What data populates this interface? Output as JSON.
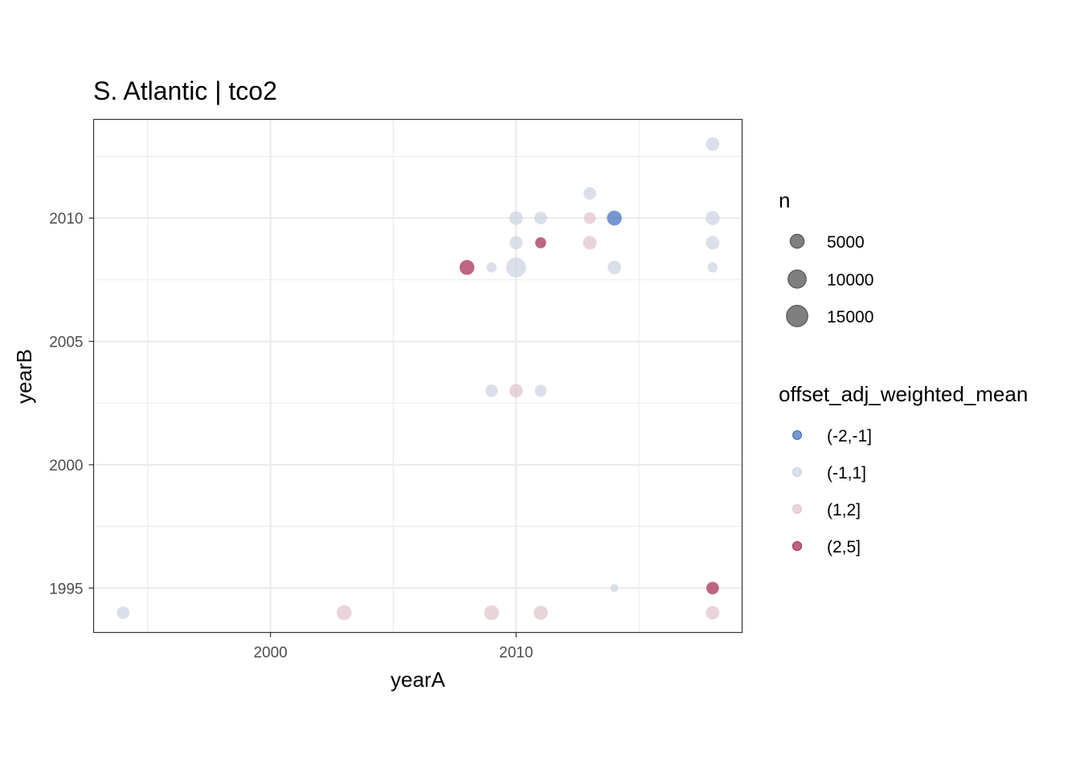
{
  "chart_data": {
    "type": "scatter",
    "title": "S. Atlantic | tco2",
    "xlabel": "yearA",
    "ylabel": "yearB",
    "xlim": [
      1992.8,
      2019.2
    ],
    "ylim": [
      1993.2,
      2014.0
    ],
    "x_ticks": [
      2000,
      2010
    ],
    "y_ticks": [
      1995,
      2000,
      2005,
      2010
    ],
    "grid": true,
    "size_legend": {
      "title": "n",
      "entries": [
        {
          "label": "5000",
          "value": 5000
        },
        {
          "label": "10000",
          "value": 10000
        },
        {
          "label": "15000",
          "value": 15000
        }
      ]
    },
    "color_legend": {
      "title": "offset_adj_weighted_mean",
      "bins": [
        {
          "label": "(-2,-1]",
          "color": "#3b6bbf"
        },
        {
          "label": "(-1,1]",
          "color": "#ccd1e0"
        },
        {
          "label": "(1,2]",
          "color": "#dfc2cb"
        },
        {
          "label": "(2,5]",
          "color": "#a3244f"
        }
      ]
    },
    "points": [
      {
        "x": 2018,
        "y": 2013,
        "n": 4500,
        "bin": "(-1,1]"
      },
      {
        "x": 2013,
        "y": 2011,
        "n": 3600,
        "bin": "(-1,1]"
      },
      {
        "x": 2010,
        "y": 2010,
        "n": 4500,
        "bin": "(-1,1]"
      },
      {
        "x": 2011,
        "y": 2010,
        "n": 3600,
        "bin": "(-1,1]"
      },
      {
        "x": 2013,
        "y": 2010,
        "n": 3000,
        "bin": "(1,2]"
      },
      {
        "x": 2014,
        "y": 2010,
        "n": 5800,
        "bin": "(-2,-1]"
      },
      {
        "x": 2018,
        "y": 2010,
        "n": 5000,
        "bin": "(-1,1]"
      },
      {
        "x": 2010,
        "y": 2009,
        "n": 4000,
        "bin": "(-1,1]"
      },
      {
        "x": 2011,
        "y": 2009,
        "n": 2400,
        "bin": "(2,5]"
      },
      {
        "x": 2013,
        "y": 2009,
        "n": 4500,
        "bin": "(1,2]"
      },
      {
        "x": 2018,
        "y": 2009,
        "n": 4500,
        "bin": "(-1,1]"
      },
      {
        "x": 2008,
        "y": 2008,
        "n": 5800,
        "bin": "(2,5]"
      },
      {
        "x": 2009,
        "y": 2008,
        "n": 1800,
        "bin": "(-1,1]"
      },
      {
        "x": 2010,
        "y": 2008,
        "n": 12500,
        "bin": "(-1,1]"
      },
      {
        "x": 2014,
        "y": 2008,
        "n": 4500,
        "bin": "(-1,1]"
      },
      {
        "x": 2018,
        "y": 2008,
        "n": 1800,
        "bin": "(-1,1]"
      },
      {
        "x": 2009,
        "y": 2003,
        "n": 3600,
        "bin": "(-1,1]"
      },
      {
        "x": 2010,
        "y": 2003,
        "n": 4500,
        "bin": "(1,2]"
      },
      {
        "x": 2011,
        "y": 2003,
        "n": 3000,
        "bin": "(-1,1]"
      },
      {
        "x": 2014,
        "y": 1995,
        "n": 700,
        "bin": "(-1,1]"
      },
      {
        "x": 2018,
        "y": 1995,
        "n": 3600,
        "bin": "(2,5]"
      },
      {
        "x": 1994,
        "y": 1994,
        "n": 3600,
        "bin": "(-1,1]"
      },
      {
        "x": 2003,
        "y": 1994,
        "n": 5800,
        "bin": "(1,2]"
      },
      {
        "x": 2009,
        "y": 1994,
        "n": 5800,
        "bin": "(1,2]"
      },
      {
        "x": 2011,
        "y": 1994,
        "n": 5000,
        "bin": "(1,2]"
      },
      {
        "x": 2018,
        "y": 1994,
        "n": 4500,
        "bin": "(1,2]"
      }
    ]
  }
}
